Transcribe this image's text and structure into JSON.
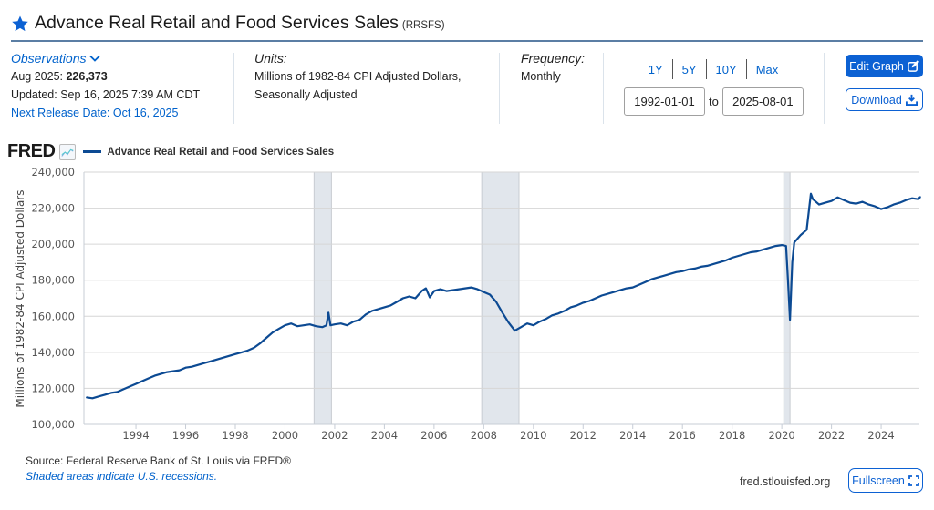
{
  "header": {
    "title": "Advance Real Retail and Food Services Sales",
    "series_code": "(RRSFS)",
    "icon": "star-icon"
  },
  "observations": {
    "toggle_label": "Observations",
    "latest_label": "Aug 2025:",
    "latest_value": "226,373",
    "updated": "Updated: Sep 16, 2025 7:39 AM CDT",
    "next_release": "Next Release Date: Oct 16, 2025"
  },
  "units": {
    "label": "Units:",
    "line1": "Millions of 1982-84 CPI Adjusted Dollars,",
    "line2": "Seasonally Adjusted"
  },
  "frequency": {
    "label": "Frequency:",
    "value": "Monthly"
  },
  "range": {
    "quick": [
      "1Y",
      "5Y",
      "10Y",
      "Max"
    ],
    "start": "1992-01-01",
    "to_label": "to",
    "end": "2025-08-01"
  },
  "buttons": {
    "edit_graph": "Edit Graph",
    "download": "Download",
    "fullscreen": "Fullscreen"
  },
  "fred_logo": "FRED",
  "footer": {
    "source": "Source: Federal Reserve Bank of St. Louis via FRED®",
    "shading_note": "Shaded areas indicate U.S. recessions.",
    "site": "fred.stlouisfed.org"
  },
  "colors": {
    "accent": "#0c61d3",
    "link": "#0062cc",
    "series": "#0c4a93",
    "recession": "#e1e6ec",
    "grid": "#d6d6d6"
  },
  "chart_data": {
    "type": "line",
    "title": "Advance Real Retail and Food Services Sales",
    "legend": [
      "Advance Real Retail and Food Services Sales"
    ],
    "legend_position": "top-left",
    "xlabel": "",
    "ylabel": "Millions of 1982-84 CPI Adjusted Dollars",
    "xlim": [
      1992.0,
      2025.6
    ],
    "ylim": [
      100000,
      240000
    ],
    "yticks": [
      100000,
      120000,
      140000,
      160000,
      180000,
      200000,
      220000,
      240000
    ],
    "ytick_labels": [
      "100,000",
      "120,000",
      "140,000",
      "160,000",
      "180,000",
      "200,000",
      "220,000",
      "240,000"
    ],
    "xticks": [
      1994,
      1996,
      1998,
      2000,
      2002,
      2004,
      2006,
      2008,
      2010,
      2012,
      2014,
      2016,
      2018,
      2020,
      2022,
      2024
    ],
    "grid": true,
    "recessions": [
      [
        2001.17,
        2001.87
      ],
      [
        2007.92,
        2009.42
      ],
      [
        2020.08,
        2020.33
      ]
    ],
    "series": [
      {
        "name": "RRSFS",
        "x": [
          1992.0,
          1992.25,
          1992.5,
          1992.75,
          1993.0,
          1993.25,
          1993.5,
          1993.75,
          1994.0,
          1994.25,
          1994.5,
          1994.75,
          1995.0,
          1995.25,
          1995.5,
          1995.75,
          1996.0,
          1996.25,
          1996.5,
          1996.75,
          1997.0,
          1997.25,
          1997.5,
          1997.75,
          1998.0,
          1998.25,
          1998.5,
          1998.75,
          1999.0,
          1999.25,
          1999.5,
          1999.75,
          2000.0,
          2000.25,
          2000.5,
          2000.75,
          2001.0,
          2001.25,
          2001.5,
          2001.67,
          2001.75,
          2001.83,
          2002.0,
          2002.25,
          2002.5,
          2002.75,
          2003.0,
          2003.25,
          2003.5,
          2003.75,
          2004.0,
          2004.25,
          2004.5,
          2004.75,
          2005.0,
          2005.25,
          2005.5,
          2005.67,
          2005.83,
          2006.0,
          2006.25,
          2006.5,
          2006.75,
          2007.0,
          2007.25,
          2007.5,
          2007.75,
          2008.0,
          2008.25,
          2008.5,
          2008.75,
          2009.0,
          2009.25,
          2009.5,
          2009.75,
          2010.0,
          2010.25,
          2010.5,
          2010.75,
          2011.0,
          2011.25,
          2011.5,
          2011.75,
          2012.0,
          2012.25,
          2012.5,
          2012.75,
          2013.0,
          2013.25,
          2013.5,
          2013.75,
          2014.0,
          2014.25,
          2014.5,
          2014.75,
          2015.0,
          2015.25,
          2015.5,
          2015.75,
          2016.0,
          2016.25,
          2016.5,
          2016.75,
          2017.0,
          2017.25,
          2017.5,
          2017.75,
          2018.0,
          2018.25,
          2018.5,
          2018.75,
          2019.0,
          2019.25,
          2019.5,
          2019.75,
          2020.0,
          2020.17,
          2020.25,
          2020.33,
          2020.42,
          2020.5,
          2020.75,
          2021.0,
          2021.17,
          2021.25,
          2021.5,
          2021.75,
          2022.0,
          2022.25,
          2022.5,
          2022.75,
          2023.0,
          2023.25,
          2023.5,
          2023.75,
          2024.0,
          2024.25,
          2024.5,
          2024.75,
          2025.0,
          2025.25,
          2025.5,
          2025.58
        ],
        "y": [
          115000,
          114500,
          115500,
          116500,
          117500,
          118000,
          119500,
          121000,
          122500,
          124000,
          125500,
          127000,
          128000,
          129000,
          129500,
          130000,
          131500,
          132000,
          133000,
          134000,
          135000,
          136000,
          137000,
          138000,
          139000,
          140000,
          141000,
          142500,
          145000,
          148000,
          151000,
          153000,
          155000,
          156000,
          154500,
          155000,
          155500,
          154500,
          154000,
          155000,
          162000,
          155000,
          155500,
          156000,
          155000,
          157000,
          158000,
          161000,
          163000,
          164000,
          165000,
          166000,
          168000,
          170000,
          171000,
          170000,
          174000,
          175500,
          170500,
          174000,
          175000,
          174000,
          174500,
          175000,
          175500,
          176000,
          175000,
          173500,
          172000,
          168000,
          162000,
          156500,
          152000,
          154000,
          156000,
          155000,
          157000,
          158500,
          160500,
          161500,
          163000,
          165000,
          166000,
          167500,
          168500,
          170000,
          171500,
          172500,
          173500,
          174500,
          175500,
          176000,
          177500,
          179000,
          180500,
          181500,
          182500,
          183500,
          184500,
          185000,
          186000,
          186500,
          187500,
          188000,
          189000,
          190000,
          191000,
          192500,
          193500,
          194500,
          195500,
          196000,
          197000,
          198000,
          199000,
          199500,
          199000,
          180000,
          158000,
          190000,
          201000,
          205000,
          208000,
          228000,
          225000,
          222000,
          223000,
          224000,
          226000,
          224500,
          223000,
          222500,
          223500,
          222000,
          221000,
          219500,
          220500,
          222000,
          223000,
          224500,
          225500,
          225000,
          226373
        ]
      }
    ]
  }
}
